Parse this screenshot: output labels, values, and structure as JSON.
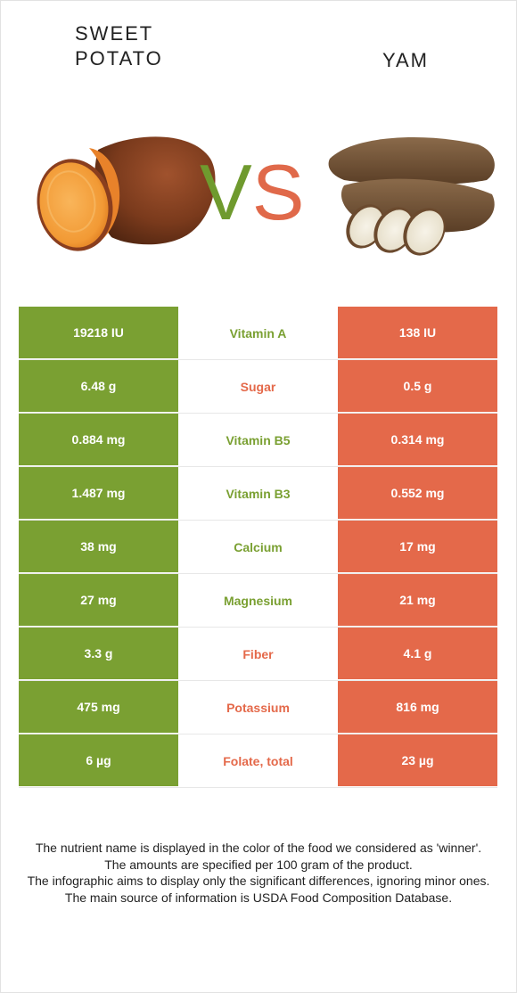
{
  "foods": {
    "left": {
      "name_line1": "SWEET",
      "name_line2": "POTATO",
      "color": "#7aa032",
      "image_icon": "sweet-potato-image"
    },
    "right": {
      "name": "YAM",
      "color": "#e4694a",
      "image_icon": "yam-image"
    }
  },
  "vs": {
    "v": "V",
    "s": "S"
  },
  "rows": [
    {
      "left": "19218 IU",
      "nutrient": "Vitamin A",
      "right": "138 IU",
      "winner": "left"
    },
    {
      "left": "6.48 g",
      "nutrient": "Sugar",
      "right": "0.5 g",
      "winner": "right"
    },
    {
      "left": "0.884 mg",
      "nutrient": "Vitamin B5",
      "right": "0.314 mg",
      "winner": "left"
    },
    {
      "left": "1.487 mg",
      "nutrient": "Vitamin B3",
      "right": "0.552 mg",
      "winner": "left"
    },
    {
      "left": "38 mg",
      "nutrient": "Calcium",
      "right": "17 mg",
      "winner": "left"
    },
    {
      "left": "27 mg",
      "nutrient": "Magnesium",
      "right": "21 mg",
      "winner": "left"
    },
    {
      "left": "3.3 g",
      "nutrient": "Fiber",
      "right": "4.1 g",
      "winner": "right"
    },
    {
      "left": "475 mg",
      "nutrient": "Potassium",
      "right": "816 mg",
      "winner": "right"
    },
    {
      "left": "6 µg",
      "nutrient": "Folate, total",
      "right": "23 µg",
      "winner": "right"
    }
  ],
  "notes": [
    "The nutrient name is displayed in the color of the food we considered as 'winner'.",
    "The amounts are specified per 100 gram of the product.",
    "The infographic aims to display only the significant differences, ignoring minor ones.",
    "The main source of information is USDA Food Composition Database."
  ]
}
